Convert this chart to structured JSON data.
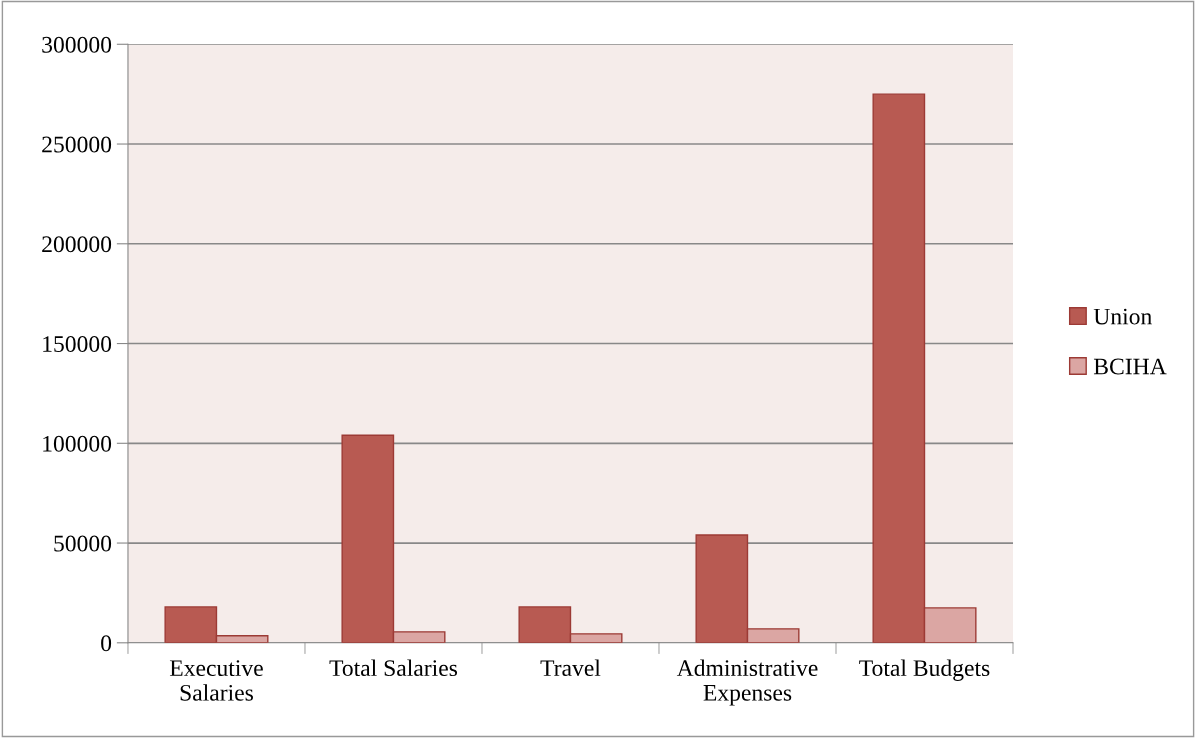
{
  "chart_data": {
    "type": "bar",
    "categories": [
      "Executive\nSalaries",
      "Total Salaries",
      "Travel",
      "Administrative\nExpenses",
      "Total Budgets"
    ],
    "series": [
      {
        "name": "Union",
        "color": "#b85a52",
        "values": [
          18000,
          104000,
          18000,
          54000,
          275000
        ]
      },
      {
        "name": "BCIHA",
        "color": "#dba6a3",
        "values": [
          3500,
          5500,
          4500,
          7000,
          17500
        ]
      }
    ],
    "ylim": [
      0,
      300000
    ],
    "yticks": [
      0,
      50000,
      100000,
      150000,
      200000,
      250000,
      300000
    ],
    "grid": "y",
    "legend": "right"
  }
}
